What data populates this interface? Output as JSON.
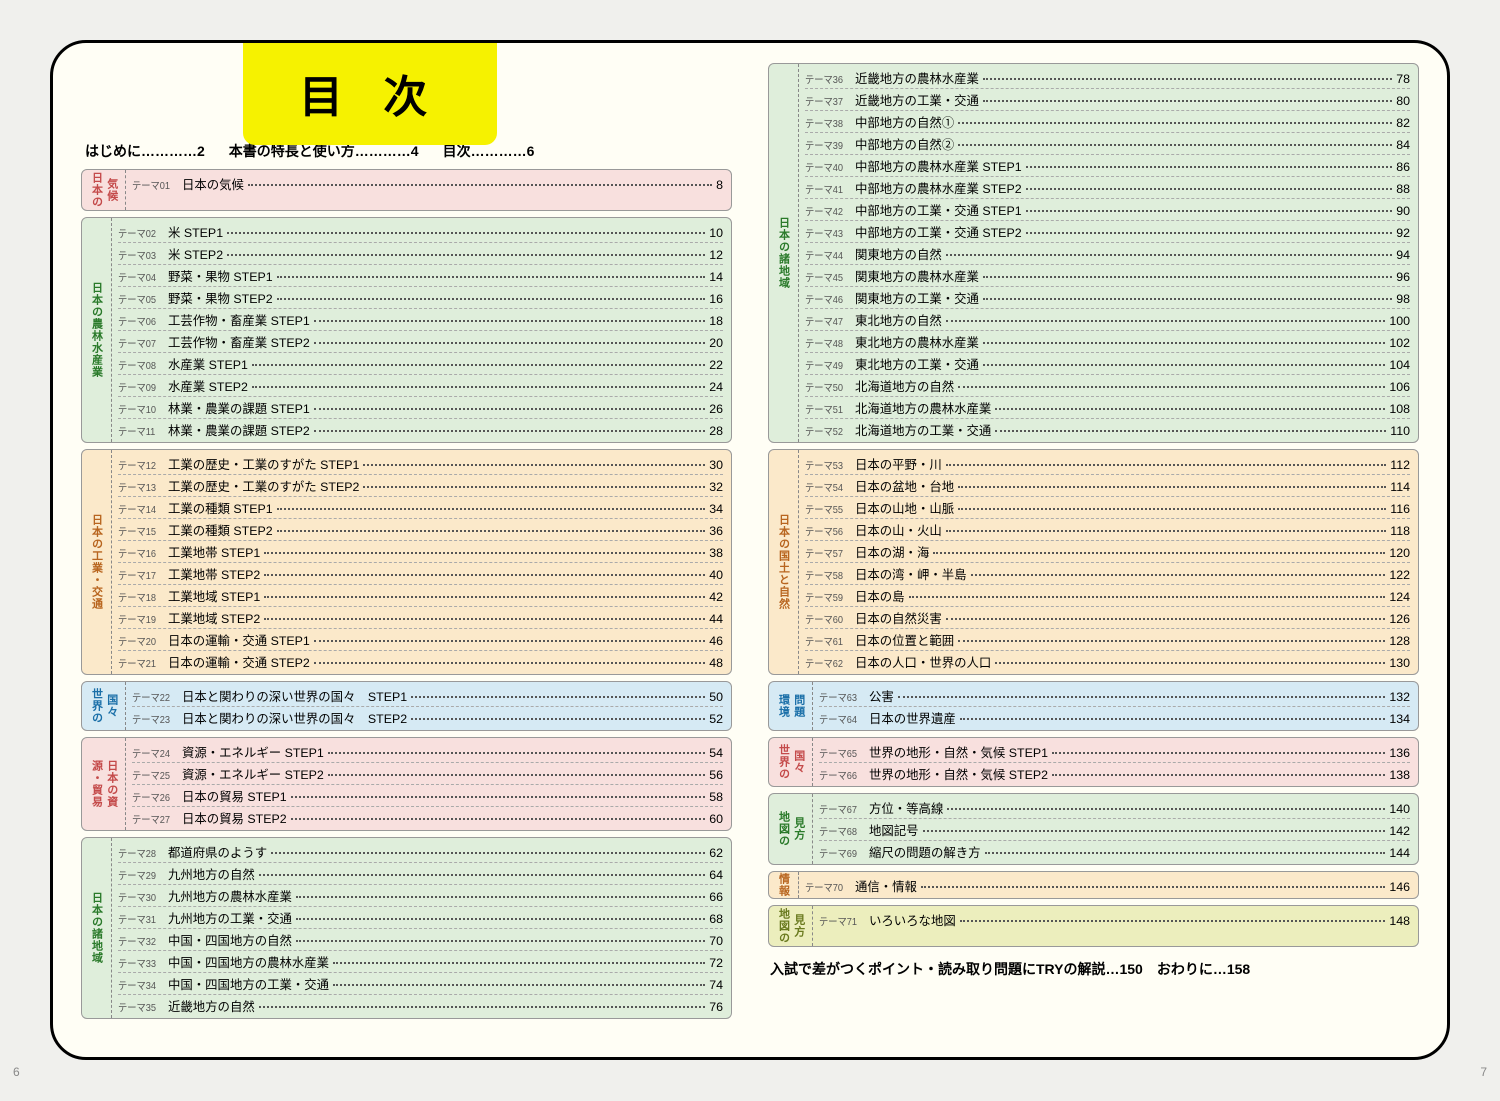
{
  "title": "目 次",
  "frontMatter": [
    {
      "t": "はじめに",
      "p": "2"
    },
    {
      "t": "本書の特長と使い方",
      "p": "4"
    },
    {
      "t": "目次",
      "p": "6"
    }
  ],
  "backMatter": [
    {
      "t": "入試で差がつくポイント・読み取り問題にTRYの解説",
      "p": "150"
    },
    {
      "t": "おわりに",
      "p": "158"
    }
  ],
  "pageLeft": "6",
  "pageRight": "7",
  "colors": {
    "green": "#dfeedb",
    "orange": "#fbe9ca",
    "blue": "#d6eaf4",
    "pink": "#f8e0de",
    "olive": "#eceebd",
    "titleBg": "#f6f200"
  },
  "left": [
    {
      "label": "日本の気候",
      "labelDouble": true,
      "color": "pink",
      "items": [
        {
          "n": "01",
          "t": "日本の気候",
          "p": "8"
        }
      ]
    },
    {
      "label": "日本の農林水産業",
      "color": "green",
      "items": [
        {
          "n": "02",
          "t": "米 STEP1",
          "p": "10"
        },
        {
          "n": "03",
          "t": "米 STEP2",
          "p": "12"
        },
        {
          "n": "04",
          "t": "野菜・果物 STEP1",
          "p": "14"
        },
        {
          "n": "05",
          "t": "野菜・果物 STEP2",
          "p": "16"
        },
        {
          "n": "06",
          "t": "工芸作物・畜産業 STEP1",
          "p": "18"
        },
        {
          "n": "07",
          "t": "工芸作物・畜産業 STEP2",
          "p": "20"
        },
        {
          "n": "08",
          "t": "水産業 STEP1",
          "p": "22"
        },
        {
          "n": "09",
          "t": "水産業 STEP2",
          "p": "24"
        },
        {
          "n": "10",
          "t": "林業・農業の課題 STEP1",
          "p": "26"
        },
        {
          "n": "11",
          "t": "林業・農業の課題 STEP2",
          "p": "28"
        }
      ]
    },
    {
      "label": "日本の工業・交通",
      "color": "orange",
      "items": [
        {
          "n": "12",
          "t": "工業の歴史・工業のすがた STEP1",
          "p": "30"
        },
        {
          "n": "13",
          "t": "工業の歴史・工業のすがた STEP2",
          "p": "32"
        },
        {
          "n": "14",
          "t": "工業の種類 STEP1",
          "p": "34"
        },
        {
          "n": "15",
          "t": "工業の種類 STEP2",
          "p": "36"
        },
        {
          "n": "16",
          "t": "工業地帯 STEP1",
          "p": "38"
        },
        {
          "n": "17",
          "t": "工業地帯 STEP2",
          "p": "40"
        },
        {
          "n": "18",
          "t": "工業地域 STEP1",
          "p": "42"
        },
        {
          "n": "19",
          "t": "工業地域 STEP2",
          "p": "44"
        },
        {
          "n": "20",
          "t": "日本の運輸・交通 STEP1",
          "p": "46"
        },
        {
          "n": "21",
          "t": "日本の運輸・交通 STEP2",
          "p": "48"
        }
      ]
    },
    {
      "label": "世界の国々",
      "labelDouble": true,
      "color": "blue",
      "items": [
        {
          "n": "22",
          "t": "日本と関わりの深い世界の国々　STEP1",
          "p": "50"
        },
        {
          "n": "23",
          "t": "日本と関わりの深い世界の国々　STEP2",
          "p": "52"
        }
      ]
    },
    {
      "label": "日本の資源・貿易",
      "labelDouble": true,
      "labelDoubleRev": true,
      "color": "pink",
      "items": [
        {
          "n": "24",
          "t": "資源・エネルギー STEP1",
          "p": "54"
        },
        {
          "n": "25",
          "t": "資源・エネルギー STEP2",
          "p": "56"
        },
        {
          "n": "26",
          "t": "日本の貿易 STEP1",
          "p": "58"
        },
        {
          "n": "27",
          "t": "日本の貿易 STEP2",
          "p": "60"
        }
      ]
    },
    {
      "label": "日本の諸地域",
      "color": "green",
      "items": [
        {
          "n": "28",
          "t": "都道府県のようす",
          "p": "62"
        },
        {
          "n": "29",
          "t": "九州地方の自然",
          "p": "64"
        },
        {
          "n": "30",
          "t": "九州地方の農林水産業",
          "p": "66"
        },
        {
          "n": "31",
          "t": "九州地方の工業・交通",
          "p": "68"
        },
        {
          "n": "32",
          "t": "中国・四国地方の自然",
          "p": "70"
        },
        {
          "n": "33",
          "t": "中国・四国地方の農林水産業",
          "p": "72"
        },
        {
          "n": "34",
          "t": "中国・四国地方の工業・交通",
          "p": "74"
        },
        {
          "n": "35",
          "t": "近畿地方の自然",
          "p": "76"
        }
      ]
    }
  ],
  "right": [
    {
      "label": "日本の諸地域",
      "color": "green",
      "items": [
        {
          "n": "36",
          "t": "近畿地方の農林水産業",
          "p": "78"
        },
        {
          "n": "37",
          "t": "近畿地方の工業・交通",
          "p": "80"
        },
        {
          "n": "38",
          "t": "中部地方の自然①",
          "p": "82"
        },
        {
          "n": "39",
          "t": "中部地方の自然②",
          "p": "84"
        },
        {
          "n": "40",
          "t": "中部地方の農林水産業 STEP1",
          "p": "86"
        },
        {
          "n": "41",
          "t": "中部地方の農林水産業 STEP2",
          "p": "88"
        },
        {
          "n": "42",
          "t": "中部地方の工業・交通 STEP1",
          "p": "90"
        },
        {
          "n": "43",
          "t": "中部地方の工業・交通 STEP2",
          "p": "92"
        },
        {
          "n": "44",
          "t": "関東地方の自然",
          "p": "94"
        },
        {
          "n": "45",
          "t": "関東地方の農林水産業",
          "p": "96"
        },
        {
          "n": "46",
          "t": "関東地方の工業・交通",
          "p": "98"
        },
        {
          "n": "47",
          "t": "東北地方の自然",
          "p": "100"
        },
        {
          "n": "48",
          "t": "東北地方の農林水産業",
          "p": "102"
        },
        {
          "n": "49",
          "t": "東北地方の工業・交通",
          "p": "104"
        },
        {
          "n": "50",
          "t": "北海道地方の自然",
          "p": "106"
        },
        {
          "n": "51",
          "t": "北海道地方の農林水産業",
          "p": "108"
        },
        {
          "n": "52",
          "t": "北海道地方の工業・交通",
          "p": "110"
        }
      ]
    },
    {
      "label": "日本の国土と自然",
      "color": "orange",
      "items": [
        {
          "n": "53",
          "t": "日本の平野・川",
          "p": "112"
        },
        {
          "n": "54",
          "t": "日本の盆地・台地",
          "p": "114"
        },
        {
          "n": "55",
          "t": "日本の山地・山脈",
          "p": "116"
        },
        {
          "n": "56",
          "t": "日本の山・火山",
          "p": "118"
        },
        {
          "n": "57",
          "t": "日本の湖・海",
          "p": "120"
        },
        {
          "n": "58",
          "t": "日本の湾・岬・半島",
          "p": "122"
        },
        {
          "n": "59",
          "t": "日本の島",
          "p": "124"
        },
        {
          "n": "60",
          "t": "日本の自然災害",
          "p": "126"
        },
        {
          "n": "61",
          "t": "日本の位置と範囲",
          "p": "128"
        },
        {
          "n": "62",
          "t": "日本の人口・世界の人口",
          "p": "130"
        }
      ]
    },
    {
      "label": "環境問題",
      "labelDouble": true,
      "color": "blue",
      "items": [
        {
          "n": "63",
          "t": "公害",
          "p": "132"
        },
        {
          "n": "64",
          "t": "日本の世界遺産",
          "p": "134"
        }
      ]
    },
    {
      "label": "世界の国々",
      "labelDouble": true,
      "color": "pink",
      "items": [
        {
          "n": "65",
          "t": "世界の地形・自然・気候 STEP1",
          "p": "136"
        },
        {
          "n": "66",
          "t": "世界の地形・自然・気候 STEP2",
          "p": "138"
        }
      ]
    },
    {
      "label": "地図の見方",
      "labelDouble": true,
      "color": "green",
      "items": [
        {
          "n": "67",
          "t": "方位・等高線",
          "p": "140"
        },
        {
          "n": "68",
          "t": "地図記号",
          "p": "142"
        },
        {
          "n": "69",
          "t": "縮尺の問題の解き方",
          "p": "144"
        }
      ]
    },
    {
      "label": "情報",
      "color": "orange",
      "items": [
        {
          "n": "70",
          "t": "通信・情報",
          "p": "146"
        }
      ]
    },
    {
      "label": "地図の見方",
      "labelDouble": true,
      "color": "olive",
      "items": [
        {
          "n": "71",
          "t": "いろいろな地図",
          "p": "148"
        }
      ]
    }
  ]
}
